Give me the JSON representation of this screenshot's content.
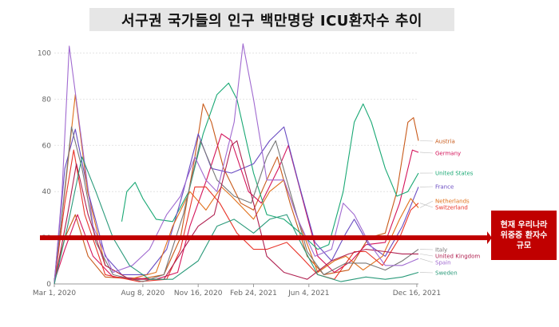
{
  "chart_data": {
    "type": "line",
    "title": "서구권 국가들의 인구 백만명당 ICU환자수 추이",
    "ylim": [
      0,
      105
    ],
    "yticks": [
      0,
      20,
      40,
      60,
      80,
      100
    ],
    "xticks": [
      "Mar 1, 2020",
      "Aug 8, 2020",
      "Nov 16, 2020",
      "Feb 24, 2021",
      "Jun 4, 2021",
      "Dec 16, 2021"
    ],
    "x_range": [
      "2020-03-01",
      "2021-12-19"
    ],
    "reference_line": {
      "value": 20,
      "label": [
        "현재 우리나라",
        "위중증 환자수",
        "규모"
      ]
    },
    "series": [
      {
        "name": "Austria",
        "color": "#c85a1a",
        "points": [
          [
            "2020-03-01",
            2
          ],
          [
            "2020-03-20",
            20
          ],
          [
            "2020-04-08",
            30
          ],
          [
            "2020-05-01",
            12
          ],
          [
            "2020-06-01",
            3
          ],
          [
            "2020-08-01",
            2
          ],
          [
            "2020-09-15",
            4
          ],
          [
            "2020-10-15",
            20
          ],
          [
            "2020-11-10",
            55
          ],
          [
            "2020-11-25",
            78
          ],
          [
            "2020-12-10",
            70
          ],
          [
            "2021-01-01",
            50
          ],
          [
            "2021-02-01",
            35
          ],
          [
            "2021-02-24",
            32
          ],
          [
            "2021-03-20",
            45
          ],
          [
            "2021-04-08",
            55
          ],
          [
            "2021-05-01",
            35
          ],
          [
            "2021-06-01",
            12
          ],
          [
            "2021-07-01",
            4
          ],
          [
            "2021-08-15",
            6
          ],
          [
            "2021-09-20",
            20
          ],
          [
            "2021-10-20",
            22
          ],
          [
            "2021-11-10",
            40
          ],
          [
            "2021-11-30",
            70
          ],
          [
            "2021-12-10",
            72
          ],
          [
            "2021-12-19",
            62
          ]
        ]
      },
      {
        "name": "Germany",
        "color": "#d4145a",
        "points": [
          [
            "2020-03-01",
            1
          ],
          [
            "2020-03-20",
            15
          ],
          [
            "2020-04-12",
            30
          ],
          [
            "2020-05-10",
            12
          ],
          [
            "2020-06-15",
            3
          ],
          [
            "2020-09-01",
            2
          ],
          [
            "2020-10-10",
            5
          ],
          [
            "2020-11-01",
            25
          ],
          [
            "2020-12-01",
            45
          ],
          [
            "2020-12-28",
            65
          ],
          [
            "2021-01-15",
            62
          ],
          [
            "2021-02-15",
            40
          ],
          [
            "2021-03-10",
            35
          ],
          [
            "2021-04-10",
            50
          ],
          [
            "2021-04-28",
            60
          ],
          [
            "2021-05-20",
            40
          ],
          [
            "2021-06-20",
            12
          ],
          [
            "2021-07-20",
            5
          ],
          [
            "2021-08-20",
            10
          ],
          [
            "2021-09-15",
            17
          ],
          [
            "2021-10-20",
            18
          ],
          [
            "2021-11-15",
            35
          ],
          [
            "2021-12-08",
            58
          ],
          [
            "2021-12-19",
            57
          ]
        ]
      },
      {
        "name": "United States",
        "color": "#19a874",
        "points": [
          [
            "2020-07-01",
            27
          ],
          [
            "2020-07-10",
            40
          ],
          [
            "2020-07-25",
            44
          ],
          [
            "2020-08-08",
            37
          ],
          [
            "2020-09-01",
            28
          ],
          [
            "2020-10-01",
            27
          ],
          [
            "2020-10-30",
            40
          ],
          [
            "2020-11-25",
            65
          ],
          [
            "2020-12-20",
            82
          ],
          [
            "2021-01-10",
            87
          ],
          [
            "2021-01-25",
            80
          ],
          [
            "2021-02-24",
            48
          ],
          [
            "2021-03-20",
            30
          ],
          [
            "2021-04-20",
            28
          ],
          [
            "2021-05-20",
            22
          ],
          [
            "2021-06-20",
            15
          ],
          [
            "2021-07-10",
            17
          ],
          [
            "2021-08-05",
            40
          ],
          [
            "2021-08-25",
            70
          ],
          [
            "2021-09-10",
            78
          ],
          [
            "2021-09-25",
            70
          ],
          [
            "2021-10-20",
            50
          ],
          [
            "2021-11-10",
            38
          ],
          [
            "2021-11-30",
            40
          ],
          [
            "2021-12-19",
            48
          ]
        ]
      },
      {
        "name": "France",
        "color": "#6a4cc2",
        "points": [
          [
            "2020-03-01",
            1
          ],
          [
            "2020-03-20",
            50
          ],
          [
            "2020-04-08",
            67
          ],
          [
            "2020-05-01",
            40
          ],
          [
            "2020-06-01",
            12
          ],
          [
            "2020-07-01",
            4
          ],
          [
            "2020-08-15",
            4
          ],
          [
            "2020-09-20",
            15
          ],
          [
            "2020-10-20",
            40
          ],
          [
            "2020-11-16",
            65
          ],
          [
            "2020-12-10",
            50
          ],
          [
            "2021-01-15",
            48
          ],
          [
            "2021-02-24",
            52
          ],
          [
            "2021-03-25",
            62
          ],
          [
            "2021-04-20",
            68
          ],
          [
            "2021-05-15",
            45
          ],
          [
            "2021-06-15",
            18
          ],
          [
            "2021-07-15",
            10
          ],
          [
            "2021-08-10",
            22
          ],
          [
            "2021-08-25",
            28
          ],
          [
            "2021-09-20",
            17
          ],
          [
            "2021-10-20",
            12
          ],
          [
            "2021-11-20",
            25
          ],
          [
            "2021-12-19",
            42
          ]
        ]
      },
      {
        "name": "Netherlands",
        "color": "#e0701a",
        "points": [
          [
            "2020-03-01",
            0
          ],
          [
            "2020-03-20",
            40
          ],
          [
            "2020-04-08",
            82
          ],
          [
            "2020-04-30",
            40
          ],
          [
            "2020-06-01",
            8
          ],
          [
            "2020-07-15",
            2
          ],
          [
            "2020-09-01",
            5
          ],
          [
            "2020-10-01",
            25
          ],
          [
            "2020-11-01",
            40
          ],
          [
            "2020-11-30",
            32
          ],
          [
            "2020-12-28",
            42
          ],
          [
            "2021-01-15",
            38
          ],
          [
            "2021-02-24",
            28
          ],
          [
            "2021-03-25",
            40
          ],
          [
            "2021-04-20",
            45
          ],
          [
            "2021-05-20",
            25
          ],
          [
            "2021-06-20",
            5
          ],
          [
            "2021-07-20",
            10
          ],
          [
            "2021-08-10",
            12
          ],
          [
            "2021-09-10",
            6
          ],
          [
            "2021-10-15",
            12
          ],
          [
            "2021-11-15",
            28
          ],
          [
            "2021-12-05",
            37
          ],
          [
            "2021-12-19",
            33
          ]
        ]
      },
      {
        "name": "Switzerland",
        "color": "#e8352a",
        "points": [
          [
            "2020-03-01",
            0
          ],
          [
            "2020-03-20",
            35
          ],
          [
            "2020-04-05",
            58
          ],
          [
            "2020-04-25",
            30
          ],
          [
            "2020-06-01",
            4
          ],
          [
            "2020-08-01",
            1
          ],
          [
            "2020-09-20",
            2
          ],
          [
            "2020-10-15",
            15
          ],
          [
            "2020-11-10",
            42
          ],
          [
            "2020-11-30",
            42
          ],
          [
            "2020-12-25",
            35
          ],
          [
            "2021-01-25",
            22
          ],
          [
            "2021-02-24",
            15
          ],
          [
            "2021-03-20",
            15
          ],
          [
            "2021-04-25",
            18
          ],
          [
            "2021-05-20",
            12
          ],
          [
            "2021-06-20",
            4
          ],
          [
            "2021-07-20",
            2
          ],
          [
            "2021-08-25",
            14
          ],
          [
            "2021-09-15",
            14
          ],
          [
            "2021-10-15",
            8
          ],
          [
            "2021-11-15",
            20
          ],
          [
            "2021-12-05",
            32
          ],
          [
            "2021-12-19",
            35
          ]
        ]
      },
      {
        "name": "Italy",
        "color": "#777777",
        "points": [
          [
            "2020-03-01",
            1
          ],
          [
            "2020-03-15",
            30
          ],
          [
            "2020-04-01",
            68
          ],
          [
            "2020-04-20",
            50
          ],
          [
            "2020-05-15",
            18
          ],
          [
            "2020-06-15",
            4
          ],
          [
            "2020-08-08",
            1
          ],
          [
            "2020-09-15",
            4
          ],
          [
            "2020-10-20",
            30
          ],
          [
            "2020-11-20",
            62
          ],
          [
            "2020-12-20",
            45
          ],
          [
            "2021-01-20",
            38
          ],
          [
            "2021-02-20",
            35
          ],
          [
            "2021-03-20",
            55
          ],
          [
            "2021-04-05",
            62
          ],
          [
            "2021-05-01",
            40
          ],
          [
            "2021-06-01",
            14
          ],
          [
            "2021-07-01",
            4
          ],
          [
            "2021-08-10",
            9
          ],
          [
            "2021-09-15",
            9
          ],
          [
            "2021-10-20",
            6
          ],
          [
            "2021-11-20",
            10
          ],
          [
            "2021-12-19",
            15
          ]
        ]
      },
      {
        "name": "United Kingdom",
        "color": "#b02050",
        "points": [
          [
            "2020-03-01",
            0
          ],
          [
            "2020-03-25",
            30
          ],
          [
            "2020-04-10",
            52
          ],
          [
            "2020-05-01",
            30
          ],
          [
            "2020-06-01",
            8
          ],
          [
            "2020-07-15",
            2
          ],
          [
            "2020-09-15",
            2
          ],
          [
            "2020-10-20",
            15
          ],
          [
            "2020-11-16",
            25
          ],
          [
            "2020-12-15",
            30
          ],
          [
            "2021-01-15",
            60
          ],
          [
            "2021-01-25",
            62
          ],
          [
            "2021-02-24",
            35
          ],
          [
            "2021-03-20",
            12
          ],
          [
            "2021-04-20",
            5
          ],
          [
            "2021-06-01",
            2
          ],
          [
            "2021-07-15",
            10
          ],
          [
            "2021-08-15",
            13
          ],
          [
            "2021-09-15",
            15
          ],
          [
            "2021-10-20",
            14
          ],
          [
            "2021-11-20",
            13
          ],
          [
            "2021-12-19",
            13
          ]
        ]
      },
      {
        "name": "Spain",
        "color": "#a06ad0",
        "points": [
          [
            "2020-03-01",
            0
          ],
          [
            "2020-03-15",
            40
          ],
          [
            "2020-03-28",
            103
          ],
          [
            "2020-04-15",
            70
          ],
          [
            "2020-05-10",
            25
          ],
          [
            "2020-06-15",
            5
          ],
          [
            "2020-07-20",
            8
          ],
          [
            "2020-08-20",
            15
          ],
          [
            "2020-09-20",
            30
          ],
          [
            "2020-10-15",
            38
          ],
          [
            "2020-11-10",
            55
          ],
          [
            "2020-11-30",
            45
          ],
          [
            "2020-12-20",
            40
          ],
          [
            "2021-01-20",
            70
          ],
          [
            "2021-02-05",
            104
          ],
          [
            "2021-02-24",
            80
          ],
          [
            "2021-03-20",
            45
          ],
          [
            "2021-04-20",
            45
          ],
          [
            "2021-05-15",
            28
          ],
          [
            "2021-06-15",
            12
          ],
          [
            "2021-07-15",
            15
          ],
          [
            "2021-08-05",
            35
          ],
          [
            "2021-08-25",
            30
          ],
          [
            "2021-09-20",
            18
          ],
          [
            "2021-10-20",
            8
          ],
          [
            "2021-11-20",
            8
          ],
          [
            "2021-12-19",
            11
          ]
        ]
      },
      {
        "name": "Sweden",
        "color": "#2a9a7a",
        "points": [
          [
            "2020-03-01",
            0
          ],
          [
            "2020-03-25",
            25
          ],
          [
            "2020-04-20",
            55
          ],
          [
            "2020-05-15",
            40
          ],
          [
            "2020-06-15",
            20
          ],
          [
            "2020-07-15",
            8
          ],
          [
            "2020-08-20",
            2
          ],
          [
            "2020-10-01",
            2
          ],
          [
            "2020-11-16",
            10
          ],
          [
            "2020-12-20",
            25
          ],
          [
            "2021-01-20",
            28
          ],
          [
            "2021-02-24",
            22
          ],
          [
            "2021-03-25",
            28
          ],
          [
            "2021-04-25",
            30
          ],
          [
            "2021-05-20",
            18
          ],
          [
            "2021-06-20",
            4
          ],
          [
            "2021-08-01",
            1
          ],
          [
            "2021-09-15",
            3
          ],
          [
            "2021-10-20",
            2
          ],
          [
            "2021-11-20",
            3
          ],
          [
            "2021-12-19",
            5
          ]
        ]
      }
    ]
  }
}
